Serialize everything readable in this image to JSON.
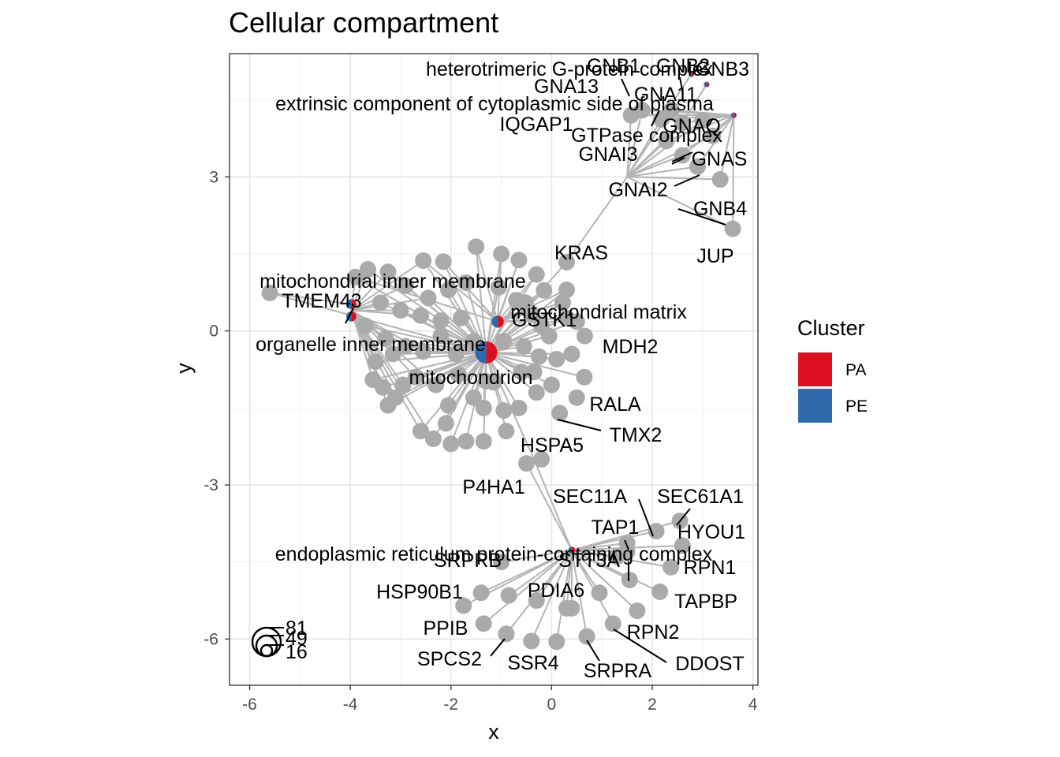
{
  "chart_data": {
    "type": "scatter",
    "title": "Cellular compartment",
    "xlabel": "x",
    "ylabel": "y",
    "xlim": [
      -6.4,
      4.1
    ],
    "ylim": [
      -6.9,
      5.4
    ],
    "xticks": [
      -6,
      -4,
      -2,
      0,
      2,
      4
    ],
    "yticks": [
      -6,
      -3,
      0,
      3
    ],
    "grid": true,
    "legend": {
      "title": "Cluster",
      "position": "right",
      "entries": [
        {
          "name": "PA",
          "color": "#dc0e1f"
        },
        {
          "name": "PE",
          "color": "#2f6aad"
        }
      ]
    },
    "colors": {
      "PA": "#dc0e1f",
      "PE": "#2f6aad",
      "gene": "#aaaaaa",
      "edge": "#b4b4b4"
    },
    "categories": [
      {
        "label": "mitochondrion",
        "x": -1.3,
        "y": -0.42,
        "r": 0.22,
        "pa": 0.5
      },
      {
        "label": "mitochondrial matrix",
        "x": -1.07,
        "y": 0.18,
        "r": 0.12,
        "pa": 0.5
      },
      {
        "label": "mitochondrial inner membrane",
        "x": -3.98,
        "y": 0.52,
        "r": 0.1,
        "pa": 0.5
      },
      {
        "label": "organelle inner membrane",
        "x": -3.98,
        "y": 0.28,
        "r": 0.1,
        "pa": 0.5
      },
      {
        "label": "endoplasmic reticulum protein-containing complex",
        "x": 0.4,
        "y": -4.27,
        "r": 0.07,
        "pa": 0.5
      },
      {
        "label": "heterotrimeric G-protein complex",
        "x": 2.78,
        "y": 5.0,
        "r": 0.055,
        "pa": 0.5
      },
      {
        "label": "extrinsic component of cytoplasmic side of plasma",
        "x": 3.08,
        "y": 4.8,
        "r": 0.055,
        "pa": 0.5
      },
      {
        "label": "GTPase complex",
        "x": 3.62,
        "y": 4.2,
        "r": 0.055,
        "pa": 0.5
      }
    ],
    "genes": [
      {
        "label": "KRAS",
        "x": 0.3,
        "y": 1.34
      },
      {
        "label": "TMEM43",
        "x": -5.6,
        "y": 0.74
      },
      {
        "label": "GSTK1",
        "x": -0.52,
        "y": 0.55
      },
      {
        "label": "MDH2",
        "x": 0.66,
        "y": -0.1
      },
      {
        "label": "RALA",
        "x": 0.5,
        "y": -1.3
      },
      {
        "label": "TMX2",
        "x": 0.16,
        "y": -1.6
      },
      {
        "label": "HSPA5",
        "x": -0.2,
        "y": -2.5
      },
      {
        "label": "P4HA1",
        "x": -0.5,
        "y": -2.58
      },
      {
        "label": "JUP",
        "x": 3.6,
        "y": 1.99
      },
      {
        "label": "GNB4",
        "x": 3.35,
        "y": 2.95
      },
      {
        "label": "GNAI2",
        "x": 2.9,
        "y": 3.2
      },
      {
        "label": "GNAS",
        "x": 2.6,
        "y": 3.42
      },
      {
        "label": "GNAI3",
        "x": 2.28,
        "y": 3.7
      },
      {
        "label": "GNAQ",
        "x": 2.6,
        "y": 4.05
      },
      {
        "label": "GNA11",
        "x": 2.18,
        "y": 4.12
      },
      {
        "label": "GNA13",
        "x": 1.58,
        "y": 4.2
      },
      {
        "label": "IQGAP1",
        "x": 1.8,
        "y": 4.3
      },
      {
        "label": "GNB1",
        "x": 2.38,
        "y": 4.3
      },
      {
        "label": "GNB2",
        "x": 3.0,
        "y": 4.1
      },
      {
        "label": "GNB3",
        "x": 3.2,
        "y": 3.8
      },
      {
        "label": "SEC11A",
        "x": 2.08,
        "y": -3.9
      },
      {
        "label": "SEC61A1",
        "x": 2.55,
        "y": -3.7
      },
      {
        "label": "HYOU1",
        "x": 2.6,
        "y": -4.18
      },
      {
        "label": "TAP1",
        "x": 1.5,
        "y": -4.13
      },
      {
        "label": "STT3A",
        "x": 1.3,
        "y": -4.4
      },
      {
        "label": "RPN1",
        "x": 2.37,
        "y": -4.6
      },
      {
        "label": "TAPBP",
        "x": 2.15,
        "y": -5.08
      },
      {
        "label": "PDIA6",
        "x": 1.55,
        "y": -4.85
      },
      {
        "label": "SRPRB",
        "x": -1.0,
        "y": -4.5
      },
      {
        "label": "HSP90B1",
        "x": -1.4,
        "y": -5.1
      },
      {
        "label": "PPIB",
        "x": -1.35,
        "y": -5.7
      },
      {
        "label": "SPCS2",
        "x": -0.9,
        "y": -5.9
      },
      {
        "label": "SSR4",
        "x": -0.4,
        "y": -6.04
      },
      {
        "label": "SRPRA",
        "x": 0.7,
        "y": -5.95
      },
      {
        "label": "RPN2",
        "x": 1.22,
        "y": -5.7
      },
      {
        "label": "DDOST",
        "x": 0.4,
        "y": -5.4
      },
      {
        "label": "",
        "x": -0.85,
        "y": -5.15
      },
      {
        "label": "",
        "x": -0.3,
        "y": -5.25
      },
      {
        "label": "",
        "x": 0.3,
        "y": -5.4
      },
      {
        "label": "",
        "x": 0.95,
        "y": -5.1
      },
      {
        "label": "",
        "x": 1.7,
        "y": -5.45
      },
      {
        "label": "",
        "x": -1.75,
        "y": -5.35
      },
      {
        "label": "",
        "x": 0.1,
        "y": -6.05
      },
      {
        "label": "",
        "x": 1.5,
        "y": -4.3
      }
    ],
    "mito_genes": [
      [
        -2.55,
        1.37
      ],
      [
        -2.15,
        1.35
      ],
      [
        -1.5,
        1.64
      ],
      [
        -1.0,
        1.5
      ],
      [
        -0.65,
        1.38
      ],
      [
        -0.3,
        1.1
      ],
      [
        -0.15,
        0.79
      ],
      [
        0.3,
        0.8
      ],
      [
        0.3,
        0.25
      ],
      [
        0.5,
        0.18
      ],
      [
        0.22,
        0.55
      ],
      [
        -3.9,
        1.05
      ],
      [
        -3.65,
        1.2
      ],
      [
        -3.25,
        1.15
      ],
      [
        -2.9,
        0.88
      ],
      [
        -2.45,
        0.64
      ],
      [
        -2.05,
        0.8
      ],
      [
        -1.7,
        0.94
      ],
      [
        -3.4,
        0.55
      ],
      [
        -3.0,
        0.4
      ],
      [
        -2.6,
        0.3
      ],
      [
        -2.2,
        0.2
      ],
      [
        -1.8,
        0.25
      ],
      [
        -1.05,
        0.85
      ],
      [
        -0.7,
        0.6
      ],
      [
        -0.4,
        0.35
      ],
      [
        -0.2,
        0.1
      ],
      [
        -0.25,
        -0.5
      ],
      [
        0.1,
        -0.55
      ],
      [
        0.65,
        -0.9
      ],
      [
        0.4,
        -0.45
      ],
      [
        -0.05,
        -0.1
      ],
      [
        -3.7,
        0.1
      ],
      [
        -3.5,
        -0.6
      ],
      [
        -3.3,
        -0.15
      ],
      [
        -3.15,
        -0.45
      ],
      [
        -2.9,
        -0.3
      ],
      [
        -2.55,
        -0.4
      ],
      [
        -2.2,
        -0.1
      ],
      [
        -1.9,
        -0.45
      ],
      [
        -1.55,
        -0.2
      ],
      [
        -0.95,
        -0.2
      ],
      [
        -0.6,
        -0.8
      ],
      [
        -0.35,
        -0.8
      ],
      [
        -3.55,
        -0.95
      ],
      [
        -3.35,
        -1.1
      ],
      [
        -3.25,
        -1.45
      ],
      [
        -3.1,
        -1.3
      ],
      [
        -2.95,
        -1.05
      ],
      [
        -2.7,
        -0.9
      ],
      [
        -2.3,
        -1.05
      ],
      [
        -2.05,
        -1.45
      ],
      [
        -1.85,
        -0.85
      ],
      [
        -1.55,
        -1.3
      ],
      [
        -1.35,
        -1.5
      ],
      [
        -1.15,
        -1.0
      ],
      [
        -0.95,
        -1.55
      ],
      [
        -0.65,
        -1.5
      ],
      [
        -0.3,
        -1.2
      ],
      [
        0.0,
        -1.05
      ],
      [
        -2.6,
        -1.95
      ],
      [
        -2.1,
        -1.8
      ],
      [
        -2.35,
        -2.1
      ],
      [
        -2.0,
        -2.2
      ],
      [
        -1.7,
        -2.15
      ],
      [
        -1.35,
        -2.15
      ],
      [
        -0.9,
        -1.95
      ],
      [
        -1.3,
        -0.98
      ],
      [
        -0.55,
        -0.3
      ]
    ],
    "size_legend": [
      "81",
      "49",
      "16"
    ]
  }
}
